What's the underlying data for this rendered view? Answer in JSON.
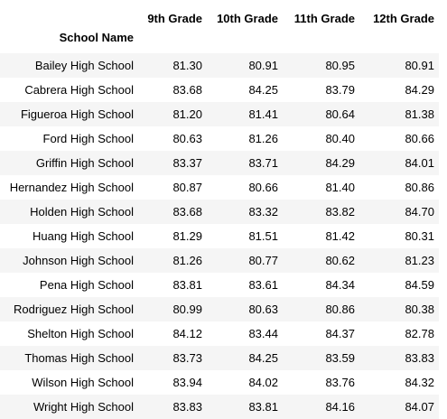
{
  "table": {
    "columns": [
      "9th Grade",
      "10th Grade",
      "11th Grade",
      "12th Grade"
    ],
    "index_name": "School Name",
    "rows": [
      {
        "school": "Bailey High School",
        "values": [
          "81.30",
          "80.91",
          "80.95",
          "80.91"
        ]
      },
      {
        "school": "Cabrera High School",
        "values": [
          "83.68",
          "84.25",
          "83.79",
          "84.29"
        ]
      },
      {
        "school": "Figueroa High School",
        "values": [
          "81.20",
          "81.41",
          "80.64",
          "81.38"
        ]
      },
      {
        "school": "Ford High School",
        "values": [
          "80.63",
          "81.26",
          "80.40",
          "80.66"
        ]
      },
      {
        "school": "Griffin High School",
        "values": [
          "83.37",
          "83.71",
          "84.29",
          "84.01"
        ]
      },
      {
        "school": "Hernandez High School",
        "values": [
          "80.87",
          "80.66",
          "81.40",
          "80.86"
        ]
      },
      {
        "school": "Holden High School",
        "values": [
          "83.68",
          "83.32",
          "83.82",
          "84.70"
        ]
      },
      {
        "school": "Huang High School",
        "values": [
          "81.29",
          "81.51",
          "81.42",
          "80.31"
        ]
      },
      {
        "school": "Johnson High School",
        "values": [
          "81.26",
          "80.77",
          "80.62",
          "81.23"
        ]
      },
      {
        "school": "Pena High School",
        "values": [
          "83.81",
          "83.61",
          "84.34",
          "84.59"
        ]
      },
      {
        "school": "Rodriguez High School",
        "values": [
          "80.99",
          "80.63",
          "80.86",
          "80.38"
        ]
      },
      {
        "school": "Shelton High School",
        "values": [
          "84.12",
          "83.44",
          "84.37",
          "82.78"
        ]
      },
      {
        "school": "Thomas High School",
        "values": [
          "83.73",
          "84.25",
          "83.59",
          "83.83"
        ]
      },
      {
        "school": "Wilson High School",
        "values": [
          "83.94",
          "84.02",
          "83.76",
          "84.32"
        ]
      },
      {
        "school": "Wright High School",
        "values": [
          "83.83",
          "83.81",
          "84.16",
          "84.07"
        ]
      }
    ]
  },
  "colors": {
    "stripe": "#f5f5f5",
    "background": "#ffffff",
    "text": "#000000"
  }
}
